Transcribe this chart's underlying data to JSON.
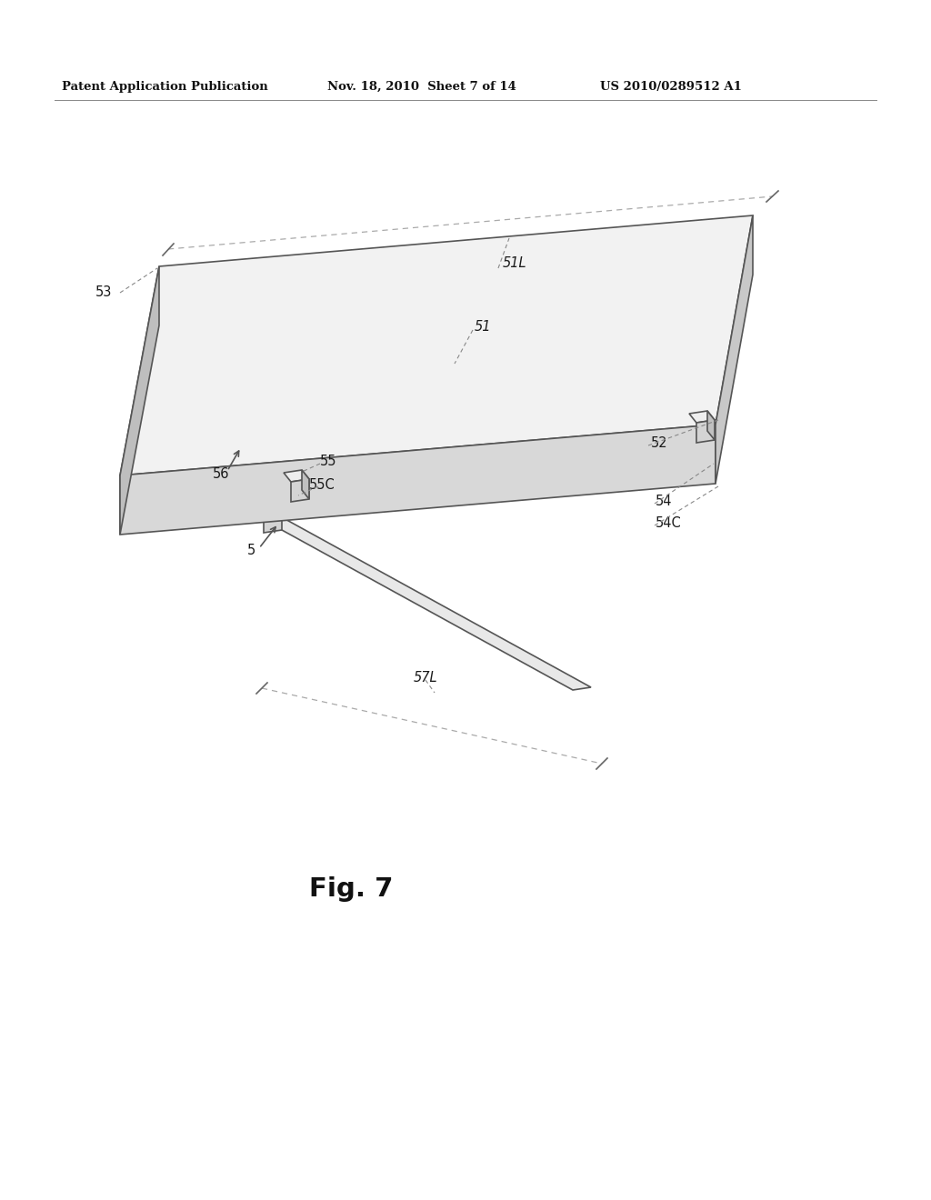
{
  "bg_color": "#ffffff",
  "header_left": "Patent Application Publication",
  "header_mid": "Nov. 18, 2010  Sheet 7 of 14",
  "header_right": "US 2010/0289512 A1",
  "fig_label": "Fig. 7",
  "stroke_color": "#555555",
  "fill_top": "#f2f2f2",
  "fill_front": "#d8d8d8",
  "fill_side_right": "#c8c8c8",
  "fill_side_left": "#bebebe",
  "dashed_color": "#aaaaaa",
  "label_color": "#1a1a1a",
  "header_color": "#111111"
}
